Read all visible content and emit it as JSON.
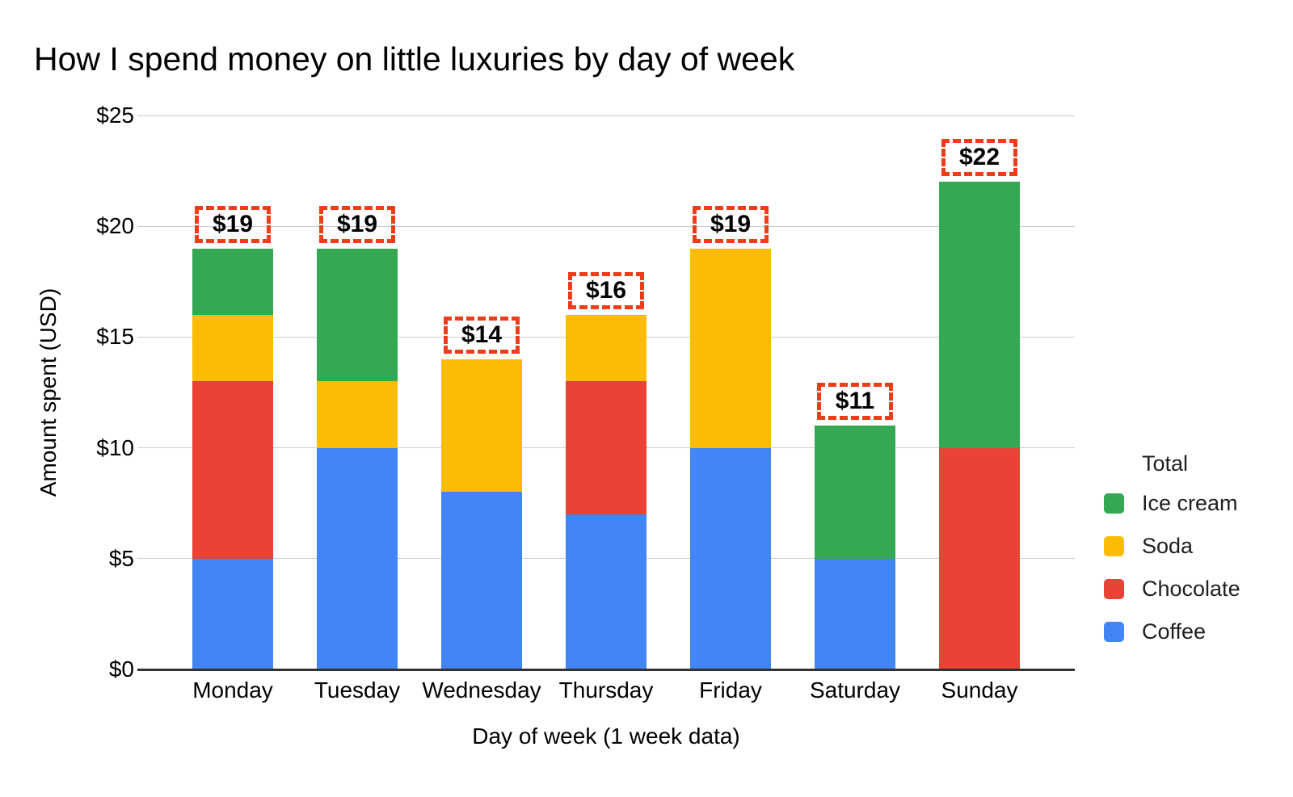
{
  "title": "How I spend money on little luxuries by day of week",
  "y_axis": {
    "title": "Amount spent (USD)",
    "tick_labels": [
      "$0",
      "$5",
      "$10",
      "$15",
      "$20",
      "$25"
    ]
  },
  "x_axis": {
    "title": "Day of week (1 week data)"
  },
  "legend": {
    "title": "Total",
    "position": "right",
    "items": [
      {
        "label": "Ice cream",
        "color": "#34A853"
      },
      {
        "label": "Soda",
        "color": "#FBBC04"
      },
      {
        "label": "Chocolate",
        "color": "#EA4335"
      },
      {
        "label": "Coffee",
        "color": "#4285F4"
      }
    ]
  },
  "annotation_style": {
    "box_border_color": "#F03C19",
    "box_border_style": "dashed"
  },
  "chart_data": {
    "type": "bar",
    "stacked": true,
    "stack_order": "bottom_to_top",
    "title": "How I spend money on little luxuries by day of week",
    "xlabel": "Day of week (1 week data)",
    "ylabel": "Amount spent (USD)",
    "ylim": [
      0,
      25
    ],
    "grid": true,
    "legend_position": "right",
    "categories": [
      "Monday",
      "Tuesday",
      "Wednesday",
      "Thursday",
      "Friday",
      "Saturday",
      "Sunday"
    ],
    "series": [
      {
        "name": "Coffee",
        "color": "#4285F4",
        "values": [
          5,
          10,
          8,
          7,
          10,
          5,
          0
        ]
      },
      {
        "name": "Chocolate",
        "color": "#EA4335",
        "values": [
          8,
          0,
          0,
          6,
          0,
          0,
          10
        ]
      },
      {
        "name": "Soda",
        "color": "#FBBC04",
        "values": [
          3,
          3,
          6,
          3,
          9,
          0,
          0
        ]
      },
      {
        "name": "Ice cream",
        "color": "#34A853",
        "values": [
          3,
          6,
          0,
          0,
          0,
          6,
          12
        ]
      }
    ],
    "totals": [
      19,
      19,
      14,
      16,
      19,
      11,
      22
    ],
    "total_labels": [
      "$19",
      "$19",
      "$14",
      "$16",
      "$19",
      "$11",
      "$22"
    ]
  }
}
